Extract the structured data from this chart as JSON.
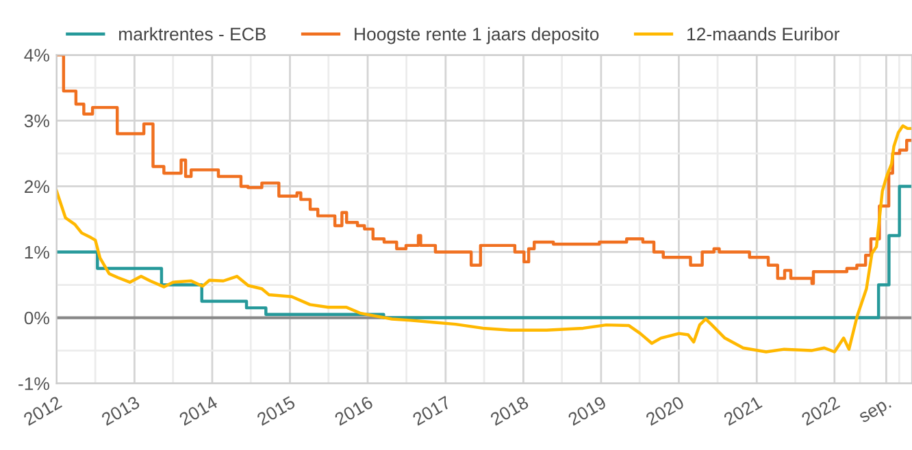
{
  "chart_data": {
    "type": "line",
    "xlim": [
      "2012-01-01",
      "2022-12-31"
    ],
    "ylim": [
      -1,
      4
    ],
    "xticks": [
      {
        "value": "2012-01-01",
        "label": "2012"
      },
      {
        "value": "2012-07-01",
        "label": null
      },
      {
        "value": "2013-01-01",
        "label": "2013"
      },
      {
        "value": "2013-07-01",
        "label": null
      },
      {
        "value": "2014-01-01",
        "label": "2014"
      },
      {
        "value": "2014-07-01",
        "label": null
      },
      {
        "value": "2015-01-01",
        "label": "2015"
      },
      {
        "value": "2015-07-01",
        "label": null
      },
      {
        "value": "2016-01-01",
        "label": "2016"
      },
      {
        "value": "2016-07-01",
        "label": null
      },
      {
        "value": "2017-01-01",
        "label": "2017"
      },
      {
        "value": "2017-07-01",
        "label": null
      },
      {
        "value": "2018-01-01",
        "label": "2018"
      },
      {
        "value": "2018-07-01",
        "label": null
      },
      {
        "value": "2019-01-01",
        "label": "2019"
      },
      {
        "value": "2019-07-01",
        "label": null
      },
      {
        "value": "2020-01-01",
        "label": "2020"
      },
      {
        "value": "2020-07-01",
        "label": null
      },
      {
        "value": "2021-01-01",
        "label": "2021"
      },
      {
        "value": "2021-07-01",
        "label": null
      },
      {
        "value": "2022-01-01",
        "label": "2022"
      },
      {
        "value": "2022-05-01",
        "label": null
      },
      {
        "value": "2022-09-01",
        "label": "sep."
      },
      {
        "value": "2022-11-01",
        "label": null
      }
    ],
    "yticks": [
      {
        "value": -1,
        "label": "-1%"
      },
      {
        "value": -0.5,
        "label": null
      },
      {
        "value": 0,
        "label": "0%"
      },
      {
        "value": 0.5,
        "label": null
      },
      {
        "value": 1,
        "label": "1%"
      },
      {
        "value": 1.5,
        "label": null
      },
      {
        "value": 2,
        "label": "2%"
      },
      {
        "value": 2.5,
        "label": null
      },
      {
        "value": 3,
        "label": "3%"
      },
      {
        "value": 3.5,
        "label": null
      },
      {
        "value": 4,
        "label": "4%"
      }
    ],
    "grid": true,
    "legend": "top",
    "ref_lines": [
      {
        "axis": "y",
        "value": 0,
        "label": null,
        "color": "#888888"
      }
    ],
    "series": [
      {
        "name": "marktrentes - ECB",
        "type": "step",
        "color": "#26999a",
        "x": [
          "2012-01-01",
          "2012-07-11",
          "2013-05-08",
          "2013-11-13",
          "2014-06-11",
          "2014-09-10",
          "2016-03-16",
          "2022-07-27",
          "2022-09-14",
          "2022-11-02",
          "2022-12-31"
        ],
        "values": [
          1.0,
          0.75,
          0.5,
          0.25,
          0.15,
          0.05,
          0.0,
          0.5,
          1.25,
          2.0,
          2.0
        ]
      },
      {
        "name": "Hoogste rente 1 jaars deposito",
        "type": "step",
        "color": "#f07020",
        "x": [
          "2012-01-01",
          "2012-02-03",
          "2012-04-01",
          "2012-05-08",
          "2012-06-18",
          "2012-10-12",
          "2013-02-14",
          "2013-03-29",
          "2013-05-19",
          "2013-08-08",
          "2013-08-29",
          "2013-09-24",
          "2014-01-30",
          "2014-05-16",
          "2014-06-18",
          "2014-08-22",
          "2014-11-10",
          "2015-02-03",
          "2015-02-21",
          "2015-04-06",
          "2015-05-12",
          "2015-07-31",
          "2015-09-02",
          "2015-09-24",
          "2015-11-14",
          "2015-12-17",
          "2016-01-26",
          "2016-03-18",
          "2016-05-16",
          "2016-06-29",
          "2016-08-26",
          "2016-09-06",
          "2016-11-14",
          "2017-01-08",
          "2017-05-01",
          "2017-06-14",
          "2017-11-22",
          "2018-01-04",
          "2018-01-26",
          "2018-02-21",
          "2018-05-22",
          "2018-12-24",
          "2019-05-01",
          "2019-07-16",
          "2019-09-06",
          "2019-10-20",
          "2020-02-25",
          "2020-04-20",
          "2020-06-14",
          "2020-07-09",
          "2020-11-28",
          "2021-02-24",
          "2021-04-09",
          "2021-05-12",
          "2021-06-10",
          "2021-09-17",
          "2021-09-24",
          "2022-02-28",
          "2022-04-16",
          "2022-05-27",
          "2022-06-21",
          "2022-07-31",
          "2022-09-13",
          "2022-10-01",
          "2022-11-03",
          "2022-12-06",
          "2022-12-31"
        ],
        "values": [
          4.0,
          3.45,
          3.25,
          3.1,
          3.2,
          2.8,
          2.95,
          2.3,
          2.2,
          2.4,
          2.15,
          2.25,
          2.15,
          2.0,
          1.98,
          2.05,
          1.85,
          1.9,
          1.8,
          1.65,
          1.55,
          1.4,
          1.6,
          1.45,
          1.4,
          1.35,
          1.2,
          1.15,
          1.05,
          1.1,
          1.25,
          1.1,
          1.0,
          1.0,
          0.8,
          1.1,
          1.0,
          0.85,
          1.05,
          1.15,
          1.12,
          1.15,
          1.2,
          1.15,
          1.0,
          0.92,
          0.8,
          1.0,
          1.05,
          1.0,
          0.92,
          0.8,
          0.6,
          0.72,
          0.6,
          0.52,
          0.7,
          0.75,
          0.8,
          0.95,
          1.2,
          1.7,
          2.2,
          2.5,
          2.55,
          2.7,
          2.7
        ]
      },
      {
        "name": "12-maands Euribor",
        "color": "#ffb800",
        "x": [
          "2012-01-01",
          "2012-02-12",
          "2012-03-27",
          "2012-04-28",
          "2012-06-10",
          "2012-07-01",
          "2012-07-23",
          "2012-09-04",
          "2012-10-16",
          "2012-12-10",
          "2013-02-01",
          "2013-03-16",
          "2013-05-19",
          "2013-07-01",
          "2013-09-24",
          "2013-11-17",
          "2013-12-19",
          "2014-02-22",
          "2014-04-27",
          "2014-06-19",
          "2014-08-22",
          "2014-09-24",
          "2015-01-09",
          "2015-04-05",
          "2015-06-29",
          "2015-09-23",
          "2015-11-26",
          "2016-01-29",
          "2016-04-24",
          "2016-07-19",
          "2016-11-04",
          "2017-02-17",
          "2017-06-25",
          "2017-11-01",
          "2018-04-20",
          "2018-10-09",
          "2019-01-25",
          "2019-05-12",
          "2019-07-04",
          "2019-08-27",
          "2019-10-09",
          "2020-01-02",
          "2020-02-14",
          "2020-03-11",
          "2020-04-08",
          "2020-05-06",
          "2020-06-01",
          "2020-08-04",
          "2020-10-29",
          "2021-02-14",
          "2021-05-10",
          "2021-09-15",
          "2021-11-14",
          "2022-01-01",
          "2022-02-13",
          "2022-03-10",
          "2022-04-18",
          "2022-05-31",
          "2022-06-26",
          "2022-07-17",
          "2022-08-14",
          "2022-09-05",
          "2022-09-26",
          "2022-10-07",
          "2022-10-28",
          "2022-11-18",
          "2022-12-10",
          "2022-12-27"
        ],
        "values": [
          1.93,
          1.52,
          1.42,
          1.29,
          1.22,
          1.18,
          0.91,
          0.67,
          0.61,
          0.54,
          0.63,
          0.56,
          0.47,
          0.54,
          0.56,
          0.48,
          0.57,
          0.56,
          0.63,
          0.49,
          0.44,
          0.35,
          0.32,
          0.2,
          0.16,
          0.16,
          0.07,
          0.03,
          -0.02,
          -0.04,
          -0.07,
          -0.1,
          -0.16,
          -0.19,
          -0.19,
          -0.16,
          -0.11,
          -0.12,
          -0.24,
          -0.39,
          -0.31,
          -0.24,
          -0.26,
          -0.37,
          -0.11,
          -0.02,
          -0.1,
          -0.31,
          -0.46,
          -0.52,
          -0.48,
          -0.5,
          -0.46,
          -0.52,
          -0.31,
          -0.48,
          0.03,
          0.44,
          0.98,
          1.08,
          1.93,
          2.17,
          2.34,
          2.61,
          2.82,
          2.92,
          2.88,
          2.88
        ]
      }
    ]
  }
}
